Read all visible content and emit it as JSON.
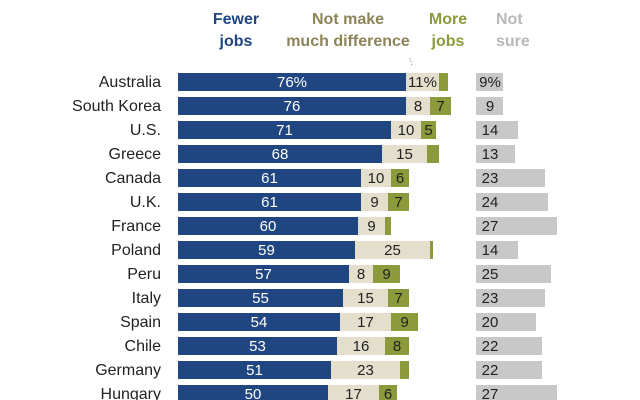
{
  "colors": {
    "fewer": "#1f4680",
    "no_difference": "#e4dfcc",
    "more": "#8c9a3c",
    "not_sure": "#c8c8c8",
    "header_fewer": "#1f4680",
    "header_no_difference": "#8c8458",
    "header_more": "#8c9a3c",
    "header_not_sure": "#b8b8b8"
  },
  "chart_data": {
    "type": "bar",
    "stacked": true,
    "orientation": "horizontal",
    "categories": [
      "Australia",
      "South Korea",
      "U.S.",
      "Greece",
      "Canada",
      "U.K.",
      "France",
      "Poland",
      "Peru",
      "Italy",
      "Spain",
      "Chile",
      "Germany",
      "Hungary"
    ],
    "series": [
      {
        "name_lines": [
          "Fewer",
          "jobs"
        ],
        "values": [
          76,
          76,
          71,
          68,
          61,
          61,
          60,
          59,
          57,
          55,
          54,
          53,
          51,
          50
        ],
        "labels": [
          "76%",
          "76",
          "71",
          "68",
          "61",
          "61",
          "60",
          "59",
          "57",
          "55",
          "54",
          "53",
          "51",
          "50"
        ]
      },
      {
        "name_lines": [
          "Not make",
          "much difference"
        ],
        "values": [
          11,
          8,
          10,
          15,
          10,
          9,
          9,
          25,
          8,
          15,
          17,
          16,
          23,
          17
        ],
        "labels": [
          "11%",
          "8",
          "10",
          "15",
          "10",
          "9",
          "9",
          "25",
          "8",
          "15",
          "17",
          "16",
          "23",
          "17"
        ]
      },
      {
        "name_lines": [
          "More",
          "jobs"
        ],
        "values": [
          3,
          7,
          5,
          4,
          6,
          7,
          2,
          1,
          9,
          7,
          9,
          8,
          3,
          6
        ],
        "labels": [
          "",
          "7",
          "5",
          "",
          "6",
          "7",
          "",
          "",
          "9",
          "7",
          "9",
          "8",
          "",
          "6"
        ]
      },
      {
        "name_lines": [
          "Not",
          "sure"
        ],
        "values": [
          9,
          9,
          14,
          13,
          23,
          24,
          27,
          14,
          25,
          23,
          20,
          22,
          22,
          27
        ],
        "labels": [
          "9%",
          "9",
          "14",
          "13",
          "23",
          "24",
          "27",
          "14",
          "25",
          "23",
          "20",
          "22",
          "22",
          "27"
        ]
      }
    ]
  }
}
